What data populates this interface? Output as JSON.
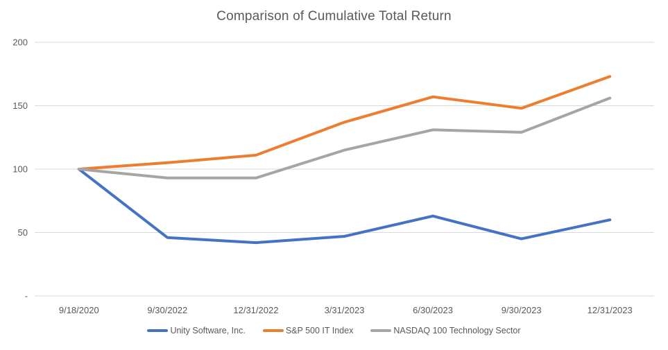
{
  "chart_data": {
    "type": "line",
    "title": "Comparison of Cumulative Total Return",
    "categories": [
      "9/18/2020",
      "9/30/2022",
      "12/31/2022",
      "3/31/2023",
      "6/30/2023",
      "9/30/2023",
      "12/31/2023"
    ],
    "series": [
      {
        "name": "Unity Software, Inc.",
        "color": "#4472C4",
        "values": [
          100,
          46,
          42,
          47,
          63,
          45,
          60
        ]
      },
      {
        "name": "S&P 500 IT Index",
        "color": "#ED7D31",
        "values": [
          100,
          105,
          111,
          137,
          157,
          148,
          173
        ]
      },
      {
        "name": "NASDAQ 100 Technology Sector",
        "color": "#A5A5A5",
        "values": [
          100,
          93,
          93,
          115,
          131,
          129,
          156
        ]
      }
    ],
    "y_axis": {
      "tick_labels": [
        "-",
        "50",
        "100",
        "150",
        "200"
      ],
      "tick_values": [
        0,
        50,
        100,
        150,
        200
      ],
      "range": [
        0,
        200
      ]
    },
    "x_axis": {
      "type": "category"
    },
    "grid": true,
    "legend_position": "bottom",
    "colors": {
      "gridline": "#D9D9D9",
      "axis_text": "#595959",
      "title_text": "#595959",
      "background": "#FFFFFF"
    }
  }
}
